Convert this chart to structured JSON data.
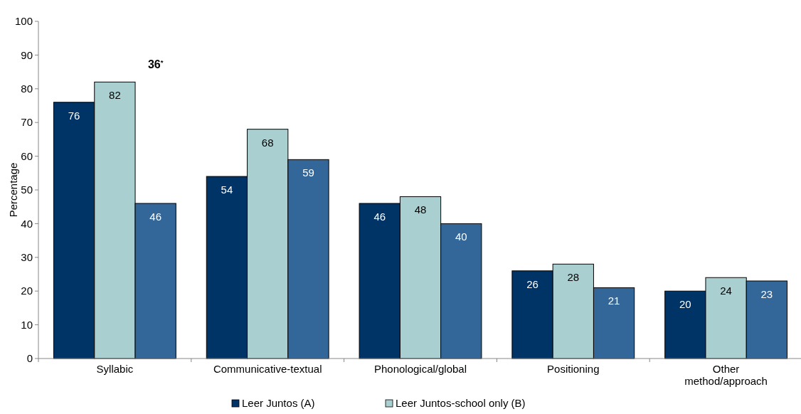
{
  "chart_data": {
    "type": "bar",
    "ylabel": "Percentage",
    "categories": [
      "Syllabic",
      "Communicative-textual",
      "Phonological/global",
      "Positioning",
      "Other method/approach"
    ],
    "series": [
      {
        "name": "Leer Juntos (A)",
        "color": "#003366",
        "values": [
          76,
          54,
          46,
          26,
          20
        ]
      },
      {
        "name": "Leer Juntos-school only (B)",
        "color": "#a9cfd1",
        "values": [
          82,
          68,
          48,
          28,
          24
        ]
      },
      {
        "color": "#336699",
        "values": [
          46,
          59,
          40,
          21,
          23
        ]
      }
    ],
    "ylim": [
      0,
      100
    ],
    "yticks": [
      0,
      10,
      20,
      30,
      40,
      50,
      60,
      70,
      80,
      90,
      100
    ],
    "data_labels": true,
    "legend": "bottom",
    "grid": false,
    "annotations": [
      "36$^{*}$"
    ]
  }
}
